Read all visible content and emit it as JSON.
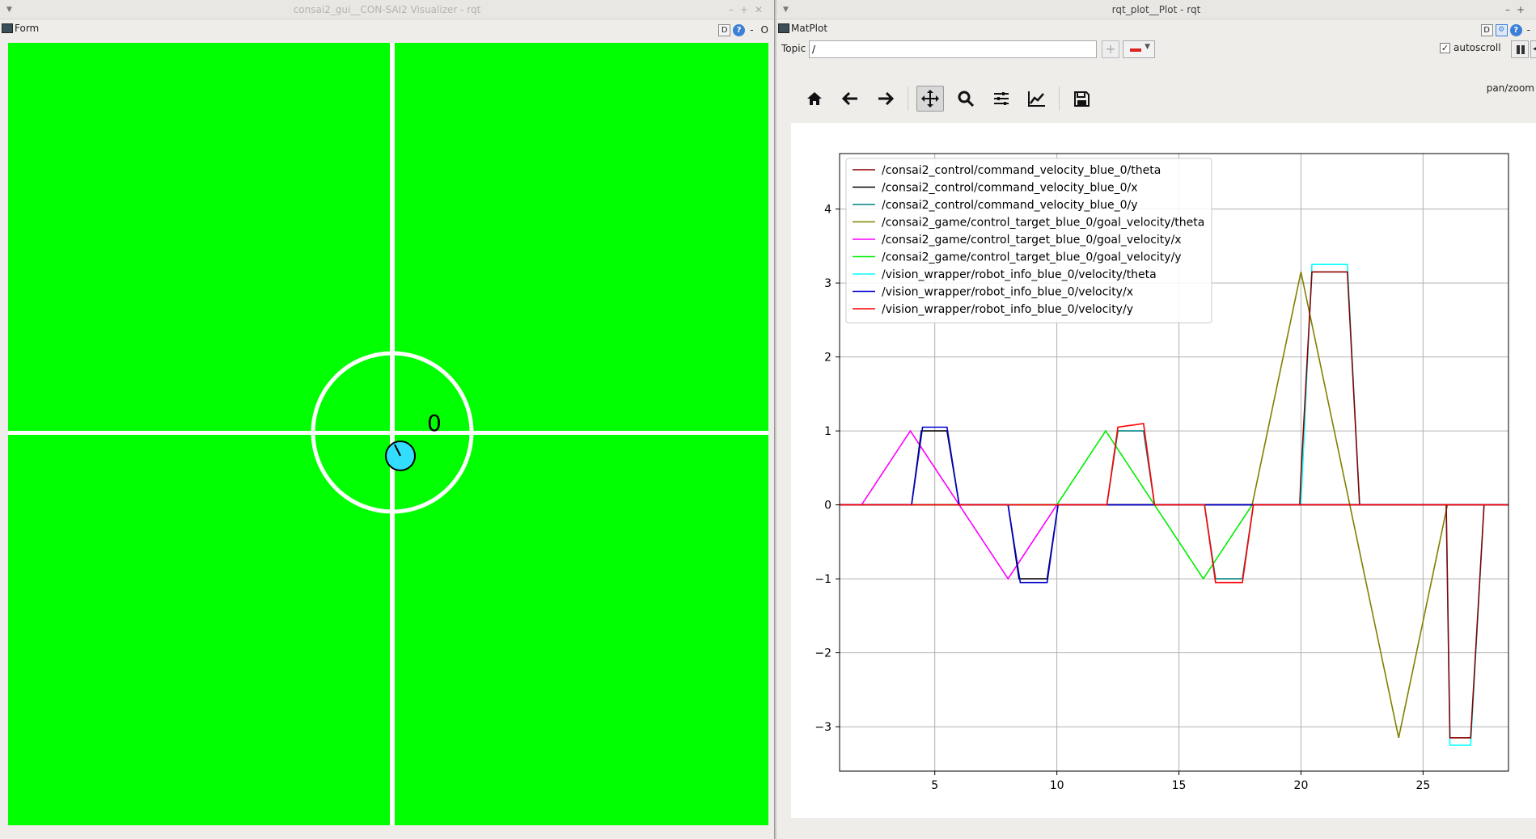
{
  "left_window": {
    "title": "consai2_gui__CON-SAI2 Visualizer - rqt",
    "dock_label": "Form",
    "dock_btn_d": "D",
    "dock_btn_help": "?",
    "dock_btn_min": "-",
    "dock_btn_close": "O",
    "robot_id": "0",
    "field_color": "#00ff00",
    "robot_color": "#33ddff"
  },
  "right_window": {
    "title": "rqt_plot__Plot - rqt",
    "dock_label": "MatPlot",
    "dock_btn_d": "D",
    "dock_btn_help": "?",
    "dock_btn_min": "-",
    "topic_label": "Topic",
    "topic_value": "/",
    "add_label": "+",
    "autoscroll_label": "autoscroll",
    "autoscroll_check": "✓",
    "clear_label": "◀",
    "mode_label": "pan/zoom",
    "toolbar": [
      {
        "name": "home-icon",
        "active": false
      },
      {
        "name": "back-icon",
        "active": false
      },
      {
        "name": "forward-icon",
        "active": false
      },
      {
        "name": "pan-icon",
        "active": true
      },
      {
        "name": "zoom-icon",
        "active": false
      },
      {
        "name": "subplots-icon",
        "active": false
      },
      {
        "name": "axes-icon",
        "active": false
      },
      {
        "name": "save-icon",
        "active": false
      }
    ]
  },
  "chart_data": {
    "type": "line",
    "xlim": [
      1.1,
      28.5
    ],
    "ylim": [
      -3.6,
      4.75
    ],
    "xticks": [
      5,
      10,
      15,
      20,
      25
    ],
    "yticks": [
      -3,
      -2,
      -1,
      0,
      1,
      2,
      3,
      4
    ],
    "grid": true,
    "legend_position": "top-left",
    "series": [
      {
        "name": "/consai2_control/command_velocity_blue_0/theta",
        "color": "#8b0000",
        "points": [
          [
            1.1,
            0
          ],
          [
            19.95,
            0
          ],
          [
            20.0,
            0.4
          ],
          [
            20.45,
            3.15
          ],
          [
            21.9,
            3.15
          ],
          [
            22.4,
            0
          ],
          [
            25.95,
            0
          ],
          [
            26.1,
            -3.15
          ],
          [
            26.95,
            -3.15
          ],
          [
            27.5,
            0
          ],
          [
            28.5,
            0
          ]
        ]
      },
      {
        "name": "/consai2_control/command_velocity_blue_0/x",
        "color": "#000000",
        "points": [
          [
            1.1,
            0
          ],
          [
            4.05,
            0
          ],
          [
            4.45,
            1.0
          ],
          [
            5.5,
            1.0
          ],
          [
            6.0,
            0
          ],
          [
            8.0,
            0
          ],
          [
            8.45,
            -1.0
          ],
          [
            9.6,
            -1.0
          ],
          [
            10.05,
            0
          ],
          [
            28.5,
            0
          ]
        ]
      },
      {
        "name": "/consai2_control/command_velocity_blue_0/y",
        "color": "#008080",
        "points": [
          [
            1.1,
            0
          ],
          [
            12.05,
            0
          ],
          [
            12.5,
            1.0
          ],
          [
            13.55,
            1.0
          ],
          [
            14.0,
            0
          ],
          [
            16.05,
            0
          ],
          [
            16.5,
            -1.0
          ],
          [
            17.6,
            -1.0
          ],
          [
            18.05,
            0
          ],
          [
            28.5,
            0
          ]
        ]
      },
      {
        "name": "/consai2_game/control_target_blue_0/goal_velocity/theta",
        "color": "#808000",
        "points": [
          [
            1.1,
            0
          ],
          [
            18.0,
            0
          ],
          [
            20.0,
            3.15
          ],
          [
            24.0,
            -3.15
          ],
          [
            26.0,
            0
          ],
          [
            28.5,
            0
          ]
        ]
      },
      {
        "name": "/consai2_game/control_target_blue_0/goal_velocity/x",
        "color": "#ff00ff",
        "points": [
          [
            1.1,
            0
          ],
          [
            2.0,
            0
          ],
          [
            4.0,
            1.0
          ],
          [
            6.0,
            0
          ],
          [
            8.0,
            -1.0
          ],
          [
            10.0,
            0
          ],
          [
            28.5,
            0
          ]
        ]
      },
      {
        "name": "/consai2_game/control_target_blue_0/goal_velocity/y",
        "color": "#00ee00",
        "points": [
          [
            1.1,
            0
          ],
          [
            10.0,
            0
          ],
          [
            12.0,
            1.0
          ],
          [
            14.0,
            0
          ],
          [
            16.0,
            -1.0
          ],
          [
            18.0,
            0
          ],
          [
            28.5,
            0
          ]
        ]
      },
      {
        "name": "/vision_wrapper/robot_info_blue_0/velocity/theta",
        "color": "#00ffff",
        "points": [
          [
            1.1,
            0
          ],
          [
            20.0,
            0
          ],
          [
            20.45,
            3.25
          ],
          [
            21.9,
            3.25
          ],
          [
            22.4,
            0
          ],
          [
            25.95,
            0
          ],
          [
            26.1,
            -3.25
          ],
          [
            26.95,
            -3.25
          ],
          [
            27.5,
            0
          ],
          [
            28.5,
            0
          ]
        ]
      },
      {
        "name": "/vision_wrapper/robot_info_blue_0/velocity/x",
        "color": "#0000cd",
        "points": [
          [
            1.1,
            0
          ],
          [
            4.05,
            0
          ],
          [
            4.5,
            1.05
          ],
          [
            5.5,
            1.05
          ],
          [
            6.0,
            0
          ],
          [
            8.0,
            0
          ],
          [
            8.5,
            -1.05
          ],
          [
            9.6,
            -1.05
          ],
          [
            10.05,
            0
          ],
          [
            28.5,
            0
          ]
        ]
      },
      {
        "name": "/vision_wrapper/robot_info_blue_0/velocity/y",
        "color": "#ff0000",
        "points": [
          [
            1.1,
            0
          ],
          [
            12.05,
            0
          ],
          [
            12.5,
            1.05
          ],
          [
            13.55,
            1.1
          ],
          [
            14.0,
            0
          ],
          [
            16.05,
            0
          ],
          [
            16.5,
            -1.05
          ],
          [
            17.6,
            -1.05
          ],
          [
            18.05,
            0
          ],
          [
            28.5,
            0
          ]
        ]
      }
    ]
  }
}
